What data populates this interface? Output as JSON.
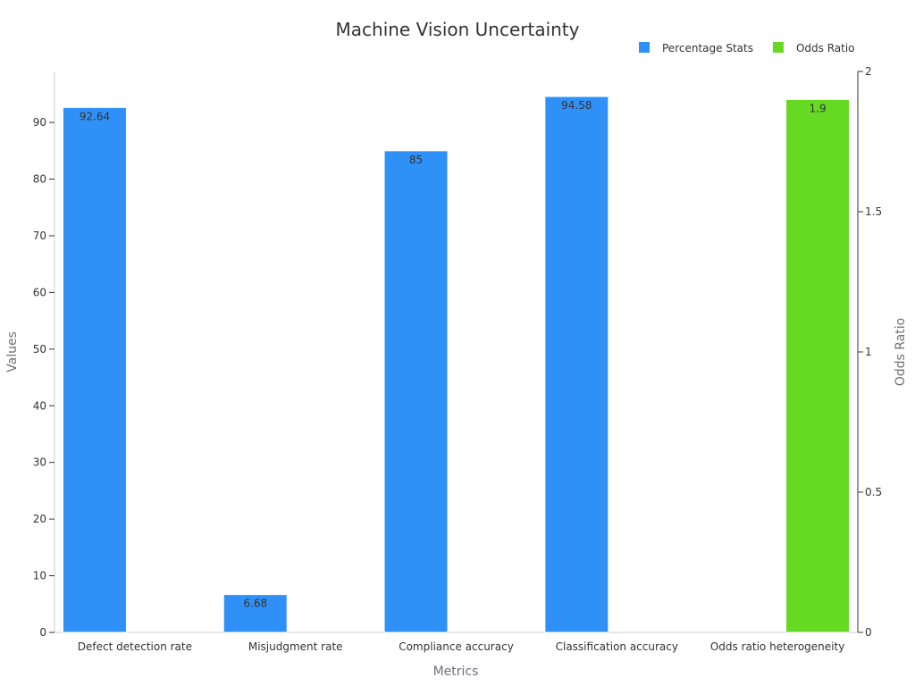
{
  "chart_data": {
    "type": "bar",
    "title": "Machine Vision Uncertainty",
    "xlabel": "Metrics",
    "ylabel": "Values",
    "y2label": "Odds Ratio",
    "categories": [
      "Defect detection rate",
      "Misjudgment rate",
      "Compliance accuracy",
      "Classification accuracy",
      "Odds ratio heterogeneity"
    ],
    "series": [
      {
        "name": "Percentage Stats",
        "axis": "left",
        "color": "#2f91f7",
        "values": [
          92.64,
          6.68,
          85,
          94.58,
          null
        ]
      },
      {
        "name": "Odds Ratio",
        "axis": "right",
        "color": "#66d923",
        "values": [
          null,
          null,
          null,
          null,
          1.9
        ]
      }
    ],
    "ylim": [
      0,
      99
    ],
    "yticks": [
      0,
      10,
      20,
      30,
      40,
      50,
      60,
      70,
      80,
      90
    ],
    "y2lim": [
      0,
      2
    ],
    "y2ticks": [
      0,
      0.5,
      1,
      1.5,
      2
    ],
    "y2tick_labels": [
      "0",
      "0.5",
      "1",
      "1.5",
      "2"
    ],
    "legend_position": "top-right",
    "grid": false
  }
}
